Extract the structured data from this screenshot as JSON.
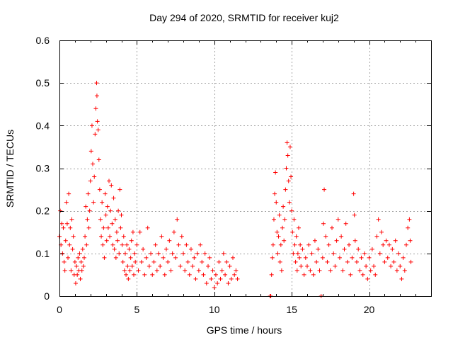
{
  "chart_data": {
    "type": "scatter",
    "title": "Day 294 of 2020, SRMTID for receiver kuj2",
    "xlabel": "GPS time / hours",
    "ylabel": "SRMTID / TECUs",
    "xlim": [
      0,
      24
    ],
    "ylim": [
      0,
      0.6
    ],
    "xticks": [
      0,
      5,
      10,
      15,
      20
    ],
    "xtick_labels": [
      "0",
      "5",
      "10",
      "15",
      "20"
    ],
    "yticks": [
      0,
      0.1,
      0.2,
      0.3,
      0.4,
      0.5,
      0.6
    ],
    "ytick_labels": [
      "0",
      "0.1",
      "0.2",
      "0.3",
      "0.4",
      "0.5",
      "0.6"
    ],
    "grid": true,
    "marker": "+",
    "color": "#ff0000",
    "series": [
      {
        "name": "SRMTID",
        "points": [
          [
            0.0,
            0.14
          ],
          [
            0.05,
            0.2
          ],
          [
            0.1,
            0.12
          ],
          [
            0.15,
            0.17
          ],
          [
            0.2,
            0.1
          ],
          [
            0.25,
            0.16
          ],
          [
            0.3,
            0.08
          ],
          [
            0.35,
            0.06
          ],
          [
            0.4,
            0.13
          ],
          [
            0.45,
            0.22
          ],
          [
            0.5,
            0.17
          ],
          [
            0.55,
            0.09
          ],
          [
            0.6,
            0.24
          ],
          [
            0.65,
            0.12
          ],
          [
            0.7,
            0.16
          ],
          [
            0.75,
            0.06
          ],
          [
            0.8,
            0.18
          ],
          [
            0.85,
            0.11
          ],
          [
            0.9,
            0.14
          ],
          [
            0.95,
            0.05
          ],
          [
            1.0,
            0.08
          ],
          [
            1.05,
            0.03
          ],
          [
            1.1,
            0.07
          ],
          [
            1.15,
            0.05
          ],
          [
            1.2,
            0.09
          ],
          [
            1.25,
            0.06
          ],
          [
            1.3,
            0.1
          ],
          [
            1.35,
            0.04
          ],
          [
            1.4,
            0.08
          ],
          [
            1.45,
            0.06
          ],
          [
            1.5,
            0.11
          ],
          [
            1.55,
            0.07
          ],
          [
            1.6,
            0.09
          ],
          [
            1.65,
            0.14
          ],
          [
            1.7,
            0.21
          ],
          [
            1.75,
            0.12
          ],
          [
            1.8,
            0.18
          ],
          [
            1.85,
            0.24
          ],
          [
            1.9,
            0.16
          ],
          [
            1.95,
            0.2
          ],
          [
            2.0,
            0.27
          ],
          [
            2.05,
            0.34
          ],
          [
            2.1,
            0.4
          ],
          [
            2.15,
            0.31
          ],
          [
            2.2,
            0.22
          ],
          [
            2.25,
            0.28
          ],
          [
            2.3,
            0.38
          ],
          [
            2.35,
            0.44
          ],
          [
            2.4,
            0.5
          ],
          [
            2.42,
            0.47
          ],
          [
            2.45,
            0.41
          ],
          [
            2.5,
            0.39
          ],
          [
            2.55,
            0.32
          ],
          [
            2.6,
            0.25
          ],
          [
            2.65,
            0.18
          ],
          [
            2.7,
            0.14
          ],
          [
            2.75,
            0.22
          ],
          [
            2.8,
            0.12
          ],
          [
            2.85,
            0.16
          ],
          [
            2.9,
            0.09
          ],
          [
            2.95,
            0.24
          ],
          [
            3.0,
            0.19
          ],
          [
            3.05,
            0.13
          ],
          [
            3.1,
            0.21
          ],
          [
            3.15,
            0.16
          ],
          [
            3.2,
            0.27
          ],
          [
            3.25,
            0.14
          ],
          [
            3.3,
            0.2
          ],
          [
            3.35,
            0.26
          ],
          [
            3.4,
            0.17
          ],
          [
            3.45,
            0.12
          ],
          [
            3.5,
            0.23
          ],
          [
            3.55,
            0.11
          ],
          [
            3.6,
            0.18
          ],
          [
            3.65,
            0.09
          ],
          [
            3.7,
            0.15
          ],
          [
            3.75,
            0.13
          ],
          [
            3.8,
            0.2
          ],
          [
            3.85,
            0.1
          ],
          [
            3.9,
            0.25
          ],
          [
            3.95,
            0.16
          ],
          [
            4.0,
            0.19
          ],
          [
            4.05,
            0.12
          ],
          [
            4.1,
            0.08
          ],
          [
            4.15,
            0.14
          ],
          [
            4.2,
            0.06
          ],
          [
            4.25,
            0.1
          ],
          [
            4.3,
            0.05
          ],
          [
            4.35,
            0.12
          ],
          [
            4.4,
            0.07
          ],
          [
            4.45,
            0.04
          ],
          [
            4.5,
            0.11
          ],
          [
            4.55,
            0.06
          ],
          [
            4.6,
            0.09
          ],
          [
            4.65,
            0.13
          ],
          [
            4.7,
            0.07
          ],
          [
            4.75,
            0.15
          ],
          [
            4.8,
            0.05
          ],
          [
            4.85,
            0.1
          ],
          [
            4.9,
            0.08
          ],
          [
            5.0,
            0.12
          ],
          [
            5.1,
            0.06
          ],
          [
            5.2,
            0.15
          ],
          [
            5.3,
            0.08
          ],
          [
            5.4,
            0.11
          ],
          [
            5.5,
            0.05
          ],
          [
            5.6,
            0.09
          ],
          [
            5.7,
            0.16
          ],
          [
            5.8,
            0.07
          ],
          [
            5.9,
            0.1
          ],
          [
            6.0,
            0.05
          ],
          [
            6.1,
            0.08
          ],
          [
            6.2,
            0.12
          ],
          [
            6.3,
            0.06
          ],
          [
            6.4,
            0.1
          ],
          [
            6.5,
            0.07
          ],
          [
            6.6,
            0.14
          ],
          [
            6.7,
            0.09
          ],
          [
            6.8,
            0.05
          ],
          [
            6.9,
            0.11
          ],
          [
            7.0,
            0.08
          ],
          [
            7.1,
            0.13
          ],
          [
            7.2,
            0.06
          ],
          [
            7.3,
            0.1
          ],
          [
            7.4,
            0.15
          ],
          [
            7.5,
            0.09
          ],
          [
            7.6,
            0.18
          ],
          [
            7.7,
            0.12
          ],
          [
            7.8,
            0.07
          ],
          [
            7.9,
            0.14
          ],
          [
            8.0,
            0.1
          ],
          [
            8.1,
            0.06
          ],
          [
            8.2,
            0.12
          ],
          [
            8.3,
            0.08
          ],
          [
            8.4,
            0.05
          ],
          [
            8.5,
            0.11
          ],
          [
            8.6,
            0.07
          ],
          [
            8.7,
            0.09
          ],
          [
            8.8,
            0.04
          ],
          [
            8.9,
            0.1
          ],
          [
            9.0,
            0.06
          ],
          [
            9.1,
            0.12
          ],
          [
            9.2,
            0.08
          ],
          [
            9.3,
            0.05
          ],
          [
            9.4,
            0.1
          ],
          [
            9.5,
            0.03
          ],
          [
            9.6,
            0.07
          ],
          [
            9.7,
            0.09
          ],
          [
            9.8,
            0.04
          ],
          [
            9.9,
            0.06
          ],
          [
            10.0,
            0.02
          ],
          [
            10.1,
            0.05
          ],
          [
            10.2,
            0.03
          ],
          [
            10.3,
            0.08
          ],
          [
            10.4,
            0.04
          ],
          [
            10.5,
            0.06
          ],
          [
            10.6,
            0.1
          ],
          [
            10.7,
            0.05
          ],
          [
            10.8,
            0.08
          ],
          [
            10.9,
            0.03
          ],
          [
            11.0,
            0.07
          ],
          [
            11.1,
            0.04
          ],
          [
            11.2,
            0.09
          ],
          [
            11.3,
            0.05
          ],
          [
            11.4,
            0.06
          ],
          [
            11.5,
            0.04
          ],
          [
            13.6,
            0.0
          ],
          [
            13.65,
            0.0
          ],
          [
            13.7,
            0.05
          ],
          [
            13.75,
            0.09
          ],
          [
            13.8,
            0.12
          ],
          [
            13.85,
            0.18
          ],
          [
            13.9,
            0.24
          ],
          [
            13.95,
            0.29
          ],
          [
            14.0,
            0.22
          ],
          [
            14.05,
            0.15
          ],
          [
            14.1,
            0.1
          ],
          [
            14.15,
            0.14
          ],
          [
            14.2,
            0.19
          ],
          [
            14.25,
            0.08
          ],
          [
            14.3,
            0.12
          ],
          [
            14.35,
            0.06
          ],
          [
            14.4,
            0.16
          ],
          [
            14.45,
            0.21
          ],
          [
            14.5,
            0.13
          ],
          [
            14.55,
            0.18
          ],
          [
            14.6,
            0.25
          ],
          [
            14.65,
            0.3
          ],
          [
            14.7,
            0.36
          ],
          [
            14.75,
            0.33
          ],
          [
            14.8,
            0.27
          ],
          [
            14.85,
            0.22
          ],
          [
            14.9,
            0.35
          ],
          [
            14.95,
            0.28
          ],
          [
            15.0,
            0.2
          ],
          [
            15.05,
            0.15
          ],
          [
            15.1,
            0.1
          ],
          [
            15.15,
            0.18
          ],
          [
            15.2,
            0.12
          ],
          [
            15.25,
            0.08
          ],
          [
            15.3,
            0.14
          ],
          [
            15.35,
            0.06
          ],
          [
            15.4,
            0.1
          ],
          [
            15.45,
            0.16
          ],
          [
            15.5,
            0.09
          ],
          [
            15.55,
            0.12
          ],
          [
            15.6,
            0.07
          ],
          [
            15.7,
            0.11
          ],
          [
            15.8,
            0.05
          ],
          [
            15.9,
            0.09
          ],
          [
            16.0,
            0.07
          ],
          [
            16.1,
            0.12
          ],
          [
            16.2,
            0.06
          ],
          [
            16.3,
            0.1
          ],
          [
            16.4,
            0.05
          ],
          [
            16.5,
            0.13
          ],
          [
            16.6,
            0.08
          ],
          [
            16.7,
            0.11
          ],
          [
            16.8,
            0.06
          ],
          [
            16.9,
            0.0
          ],
          [
            17.0,
            0.09
          ],
          [
            17.05,
            0.17
          ],
          [
            17.1,
            0.25
          ],
          [
            17.2,
            0.14
          ],
          [
            17.3,
            0.08
          ],
          [
            17.4,
            0.12
          ],
          [
            17.5,
            0.06
          ],
          [
            17.6,
            0.16
          ],
          [
            17.7,
            0.1
          ],
          [
            17.8,
            0.07
          ],
          [
            17.9,
            0.13
          ],
          [
            18.0,
            0.18
          ],
          [
            18.1,
            0.09
          ],
          [
            18.2,
            0.14
          ],
          [
            18.3,
            0.06
          ],
          [
            18.4,
            0.11
          ],
          [
            18.5,
            0.17
          ],
          [
            18.6,
            0.08
          ],
          [
            18.7,
            0.12
          ],
          [
            18.8,
            0.05
          ],
          [
            18.9,
            0.09
          ],
          [
            19.0,
            0.24
          ],
          [
            19.05,
            0.19
          ],
          [
            19.1,
            0.13
          ],
          [
            19.2,
            0.08
          ],
          [
            19.3,
            0.11
          ],
          [
            19.4,
            0.06
          ],
          [
            19.5,
            0.09
          ],
          [
            19.6,
            0.05
          ],
          [
            19.7,
            0.1
          ],
          [
            19.8,
            0.07
          ],
          [
            19.9,
            0.04
          ],
          [
            20.0,
            0.09
          ],
          [
            20.1,
            0.06
          ],
          [
            20.2,
            0.11
          ],
          [
            20.3,
            0.07
          ],
          [
            20.4,
            0.05
          ],
          [
            20.5,
            0.14
          ],
          [
            20.6,
            0.18
          ],
          [
            20.7,
            0.1
          ],
          [
            20.8,
            0.15
          ],
          [
            20.9,
            0.12
          ],
          [
            21.0,
            0.08
          ],
          [
            21.1,
            0.13
          ],
          [
            21.2,
            0.09
          ],
          [
            21.3,
            0.12
          ],
          [
            21.4,
            0.07
          ],
          [
            21.5,
            0.11
          ],
          [
            21.6,
            0.08
          ],
          [
            21.7,
            0.13
          ],
          [
            21.8,
            0.06
          ],
          [
            21.9,
            0.1
          ],
          [
            22.0,
            0.07
          ],
          [
            22.1,
            0.04
          ],
          [
            22.2,
            0.09
          ],
          [
            22.3,
            0.06
          ],
          [
            22.4,
            0.12
          ],
          [
            22.5,
            0.16
          ],
          [
            22.6,
            0.18
          ],
          [
            22.65,
            0.13
          ],
          [
            22.7,
            0.08
          ]
        ]
      }
    ]
  }
}
